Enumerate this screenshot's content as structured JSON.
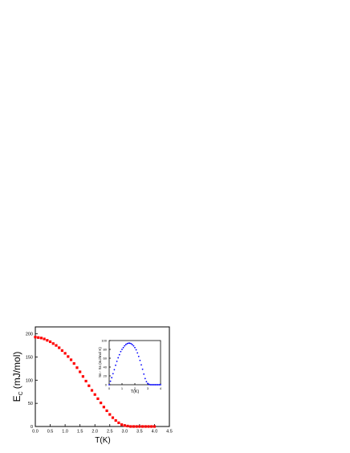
{
  "chart_data": [
    {
      "type": "scatter",
      "xlabel": "T(K)",
      "ylabel_main": "E",
      "ylabel_sub": "C",
      "ylabel_unit": "(mJ/mol)",
      "xlim": [
        0,
        4.5
      ],
      "ylim": [
        0,
        215
      ],
      "x_ticks": [
        "0.0",
        "0.5",
        "1.0",
        "1.5",
        "2.0",
        "2.5",
        "3.0",
        "3.5",
        "4.0",
        "4.5"
      ],
      "y_ticks": [
        "0",
        "50",
        "100",
        "150",
        "200"
      ],
      "marker": "square",
      "color": "#ff0000",
      "series": [
        {
          "x": [
            0.0,
            0.1,
            0.2,
            0.3,
            0.4,
            0.5,
            0.6,
            0.7,
            0.8,
            0.9,
            1.0,
            1.1,
            1.2,
            1.3,
            1.4,
            1.5,
            1.6,
            1.7,
            1.8,
            1.9,
            2.0,
            2.1,
            2.2,
            2.3,
            2.4,
            2.5,
            2.6,
            2.7,
            2.8,
            2.9,
            3.0,
            3.1,
            3.2,
            3.3,
            3.4,
            3.5,
            3.6,
            3.7,
            3.8,
            3.9,
            4.0
          ],
          "values": [
            193,
            192,
            191,
            189,
            186,
            183,
            179,
            175,
            170,
            164,
            158,
            151,
            144,
            136,
            127,
            118,
            108,
            98,
            88,
            78,
            69,
            60,
            51,
            42,
            34,
            26,
            19,
            13,
            8,
            4,
            2,
            1,
            0,
            0,
            0,
            0,
            0,
            0,
            0,
            0,
            0
          ]
        }
      ]
    },
    {
      "type": "scatter",
      "xlabel": "T(K)",
      "ylabel": "Sn - Ss  (mJ/mol K)",
      "xlim": [
        0,
        4
      ],
      "ylim": [
        0,
        100
      ],
      "x_ticks": [
        "0",
        "1",
        "2",
        "3",
        "4"
      ],
      "y_ticks": [
        "0",
        "20",
        "40",
        "60",
        "80",
        "100"
      ],
      "marker": "circle",
      "color": "#0000ff",
      "series": [
        {
          "x": [
            0.0,
            0.1,
            0.2,
            0.3,
            0.4,
            0.5,
            0.6,
            0.7,
            0.8,
            0.9,
            1.0,
            1.1,
            1.2,
            1.3,
            1.4,
            1.5,
            1.6,
            1.7,
            1.8,
            1.9,
            2.0,
            2.1,
            2.2,
            2.3,
            2.4,
            2.5,
            2.6,
            2.7,
            2.8,
            2.9,
            3.0,
            3.1,
            3.2,
            3.3,
            3.4,
            3.5,
            3.6,
            3.7,
            3.8,
            3.9,
            4.0
          ],
          "values": [
            0,
            8,
            16,
            25,
            34,
            44,
            53,
            61,
            68,
            75,
            80,
            84,
            88,
            91,
            93,
            94,
            94,
            93,
            91,
            88,
            84,
            79,
            72,
            64,
            55,
            45,
            35,
            24,
            14,
            7,
            3,
            1,
            0,
            0,
            0,
            0,
            0,
            0,
            0,
            0,
            0
          ]
        }
      ]
    }
  ]
}
